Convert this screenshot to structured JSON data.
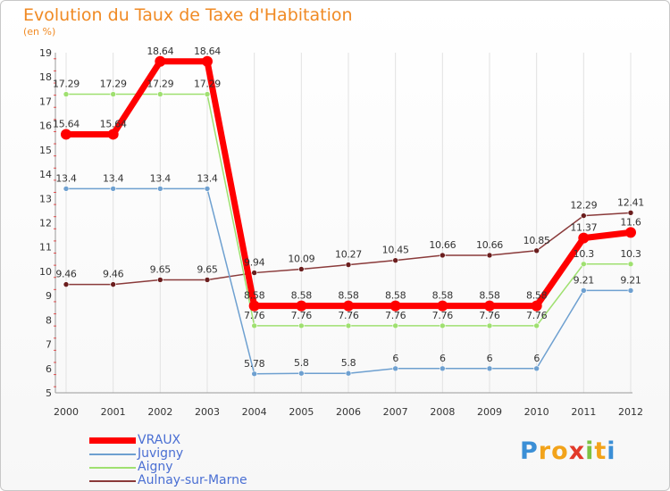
{
  "header": {
    "title": "Evolution du Taux de Taxe d'Habitation",
    "subtitle": "(en %)"
  },
  "logo": {
    "letters": [
      "P",
      "r",
      "o",
      "x",
      "i",
      "t",
      "i"
    ],
    "colors": [
      "#3b8fd6",
      "#f2a31a",
      "#f2a31a",
      "#e23a2a",
      "#7cc242",
      "#f2a31a",
      "#3b8fd6"
    ]
  },
  "chart_data": {
    "type": "line",
    "title": "Evolution du Taux de Taxe d'Habitation",
    "subtitle": "(en %)",
    "xlabel": "",
    "ylabel": "",
    "x": [
      "2000",
      "2001",
      "2002",
      "2003",
      "2004",
      "2005",
      "2006",
      "2007",
      "2008",
      "2009",
      "2010",
      "2011",
      "2012"
    ],
    "ylim": [
      5,
      19
    ],
    "yticks": [
      5,
      6,
      7,
      8,
      9,
      10,
      11,
      12,
      13,
      14,
      15,
      16,
      17,
      18,
      19
    ],
    "grid": "vertical",
    "legend_position": "bottom-left",
    "series": [
      {
        "name": "VRAUX",
        "color": "#ff0000",
        "values": [
          15.64,
          15.64,
          18.64,
          18.64,
          8.58,
          8.58,
          8.58,
          8.58,
          8.58,
          8.58,
          8.58,
          11.37,
          11.6
        ],
        "labels": [
          "15.64",
          "15.64",
          "18.64",
          "18.64",
          "8.58",
          "8.58",
          "8.58",
          "8.58",
          "8.58",
          "8.58",
          "8.58",
          "11.37",
          "11.6"
        ]
      },
      {
        "name": "Juvigny",
        "color": "#6ea0d0",
        "values": [
          13.4,
          13.4,
          13.4,
          13.4,
          5.78,
          5.8,
          5.8,
          6,
          6,
          6,
          6,
          9.21,
          9.21
        ],
        "labels": [
          "13.4",
          "13.4",
          "13.4",
          "13.4",
          "5.78",
          "5.8",
          "5.8",
          "6",
          "6",
          "6",
          "6",
          "9.21",
          "9.21"
        ]
      },
      {
        "name": "Aigny",
        "color": "#9fe070",
        "values": [
          17.29,
          17.29,
          17.29,
          17.29,
          7.76,
          7.76,
          7.76,
          7.76,
          7.76,
          7.76,
          7.76,
          10.3,
          10.3
        ],
        "labels": [
          "17.29",
          "17.29",
          "17.29",
          "17.29",
          "7.76",
          "7.76",
          "7.76",
          "7.76",
          "7.76",
          "7.76",
          "7.76",
          "10.3",
          "10.3"
        ]
      },
      {
        "name": "Aulnay-sur-Marne",
        "color": "#8a3a3a",
        "values": [
          9.46,
          9.46,
          9.65,
          9.65,
          9.94,
          10.09,
          10.27,
          10.45,
          10.66,
          10.66,
          10.85,
          12.29,
          12.41
        ],
        "labels": [
          "9.46",
          "9.46",
          "9.65",
          "9.65",
          "9.94",
          "10.09",
          "10.27",
          "10.45",
          "10.66",
          "10.66",
          "10.85",
          "12.29",
          "12.41"
        ]
      }
    ]
  }
}
